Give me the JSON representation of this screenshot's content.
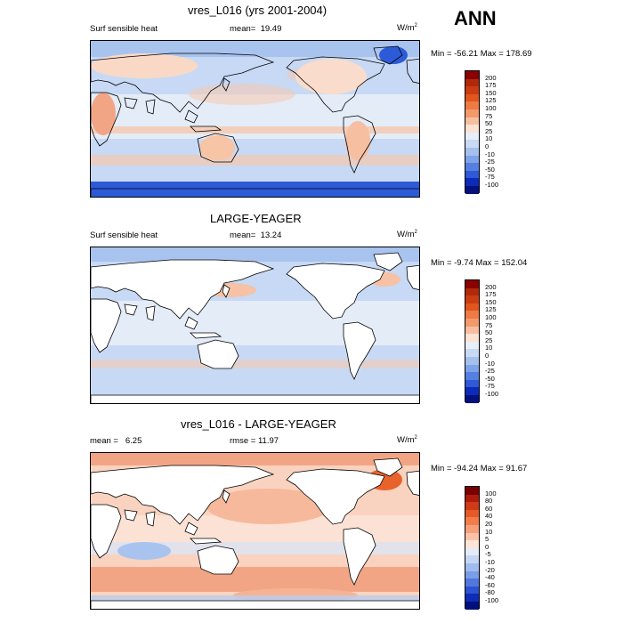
{
  "header": {
    "season": "ANN"
  },
  "panels": [
    {
      "title": "vres_L016 (yrs 2001-2004)",
      "left_label": "Surf sensible heat",
      "mean_label": "mean=",
      "mean_value": "19.49",
      "units": "W/m",
      "units_sup": "2",
      "minmax": "Min = -56.21 Max = 178.69",
      "colorbar": [
        "200",
        "175",
        "150",
        "125",
        "100",
        "75",
        "50",
        "25",
        "10",
        "0",
        "-10",
        "-25",
        "-50",
        "-75",
        "-100"
      ]
    },
    {
      "title": "LARGE-YEAGER",
      "left_label": "Surf sensible heat",
      "mean_label": "mean=",
      "mean_value": "13.24",
      "units": "W/m",
      "units_sup": "2",
      "minmax": "Min =  -9.74 Max = 152.04",
      "colorbar": [
        "200",
        "175",
        "150",
        "125",
        "100",
        "75",
        "50",
        "25",
        "10",
        "0",
        "-10",
        "-25",
        "-50",
        "-75",
        "-100"
      ]
    },
    {
      "title": "vres_L016 - LARGE-YEAGER",
      "left_label": "mean =",
      "mean_value": "6.25",
      "rmse_label": "rmse =",
      "rmse_value": "11.97",
      "units": "W/m",
      "units_sup": "2",
      "minmax": "Min = -94.24 Max =  91.67",
      "colorbar": [
        "100",
        "80",
        "60",
        "40",
        "20",
        "10",
        "5",
        "0",
        "-5",
        "-10",
        "-20",
        "-40",
        "-60",
        "-80",
        "-100"
      ]
    }
  ],
  "colors": {
    "ocean_pos": "#f5c8ad",
    "ocean_neg": "#c7d9f4",
    "ocean_mid": "#e4ecf8",
    "strong_neg": "#2d5bd8",
    "diff_pos": "#f2a585",
    "land": "#ffffff",
    "scale_abs": [
      "#8b0000",
      "#b02a0a",
      "#cc3c12",
      "#e0561e",
      "#ee7a44",
      "#f39a6c",
      "#f7bfa0",
      "#fbe2d2",
      "#e6eef9",
      "#c9d9f3",
      "#a6c0ee",
      "#7ea3e8",
      "#557fe0",
      "#2f59d6",
      "#0c2bb8",
      "#04107c"
    ],
    "scale_diff": [
      "#7a0000",
      "#ad1c0a",
      "#cf3a18",
      "#e65a28",
      "#f27d4a",
      "#f6a07b",
      "#fac3a9",
      "#fde4d7",
      "#e3ecfa",
      "#c4d6f3",
      "#a0bcee",
      "#7a9de7",
      "#5278de",
      "#2d53d2",
      "#0f2cb5",
      "#00107a"
    ]
  }
}
